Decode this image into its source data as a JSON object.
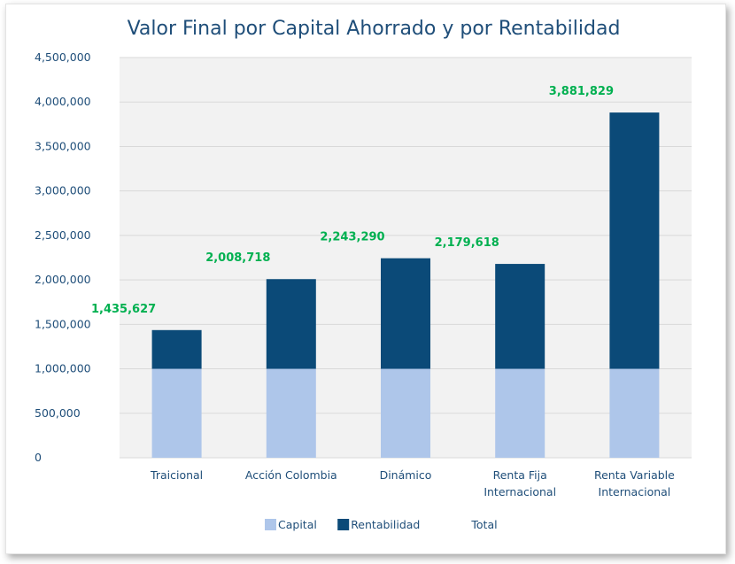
{
  "chart_data": {
    "type": "bar",
    "stacked": true,
    "title": "Valor Final por Capital Ahorrado y por Rentabilidad",
    "categories": [
      [
        "Traicional"
      ],
      [
        "Acción Colombia"
      ],
      [
        "Dinámico"
      ],
      [
        "Renta Fija",
        "Internacional"
      ],
      [
        "Renta Variable",
        "Internacional"
      ]
    ],
    "series": [
      {
        "name": "Capital",
        "color": "#aec6ea",
        "values": [
          1000000,
          1000000,
          1000000,
          1000000,
          1000000
        ]
      },
      {
        "name": "Rentabilidad",
        "color": "#0b4a78",
        "values": [
          435627,
          1008718,
          1243290,
          1179618,
          2881829
        ]
      }
    ],
    "totals": {
      "name": "Total",
      "labels": [
        "1,435,627",
        "2,008,718",
        "2,243,290",
        "2,179,618",
        "3,881,829"
      ],
      "color": "#00b050"
    },
    "ylim": [
      0,
      4500000
    ],
    "yticks": [
      0,
      500000,
      1000000,
      1500000,
      2000000,
      2500000,
      3000000,
      3500000,
      4000000,
      4500000
    ],
    "ytick_labels": [
      "0",
      "500,000",
      "1,000,000",
      "1,500,000",
      "2,000,000",
      "2,500,000",
      "3,000,000",
      "3,500,000",
      "4,000,000",
      "4,500,000"
    ],
    "grid": true,
    "plot_background": "#f2f2f2",
    "legend_position": "bottom"
  }
}
